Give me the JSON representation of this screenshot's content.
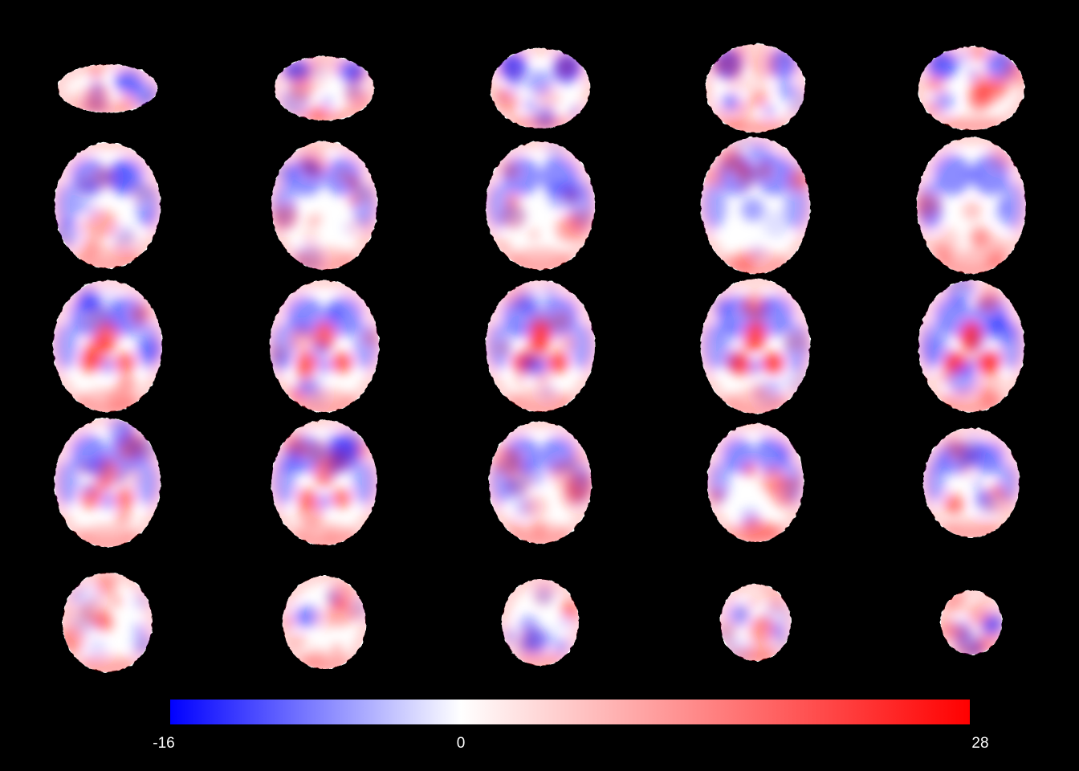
{
  "colorbar": {
    "min_label": "-16",
    "mid_label": "0",
    "max_label": "28",
    "min_value": -16,
    "mid_value": 0,
    "max_value": 28,
    "colors": {
      "negative": "#0000ff",
      "neutral": "#ffffff",
      "positive": "#ff0000"
    }
  },
  "colors": {
    "background": "#000000",
    "text": "#ffffff"
  },
  "montage": {
    "rows": 5,
    "columns": 5,
    "slice_count": 25
  }
}
